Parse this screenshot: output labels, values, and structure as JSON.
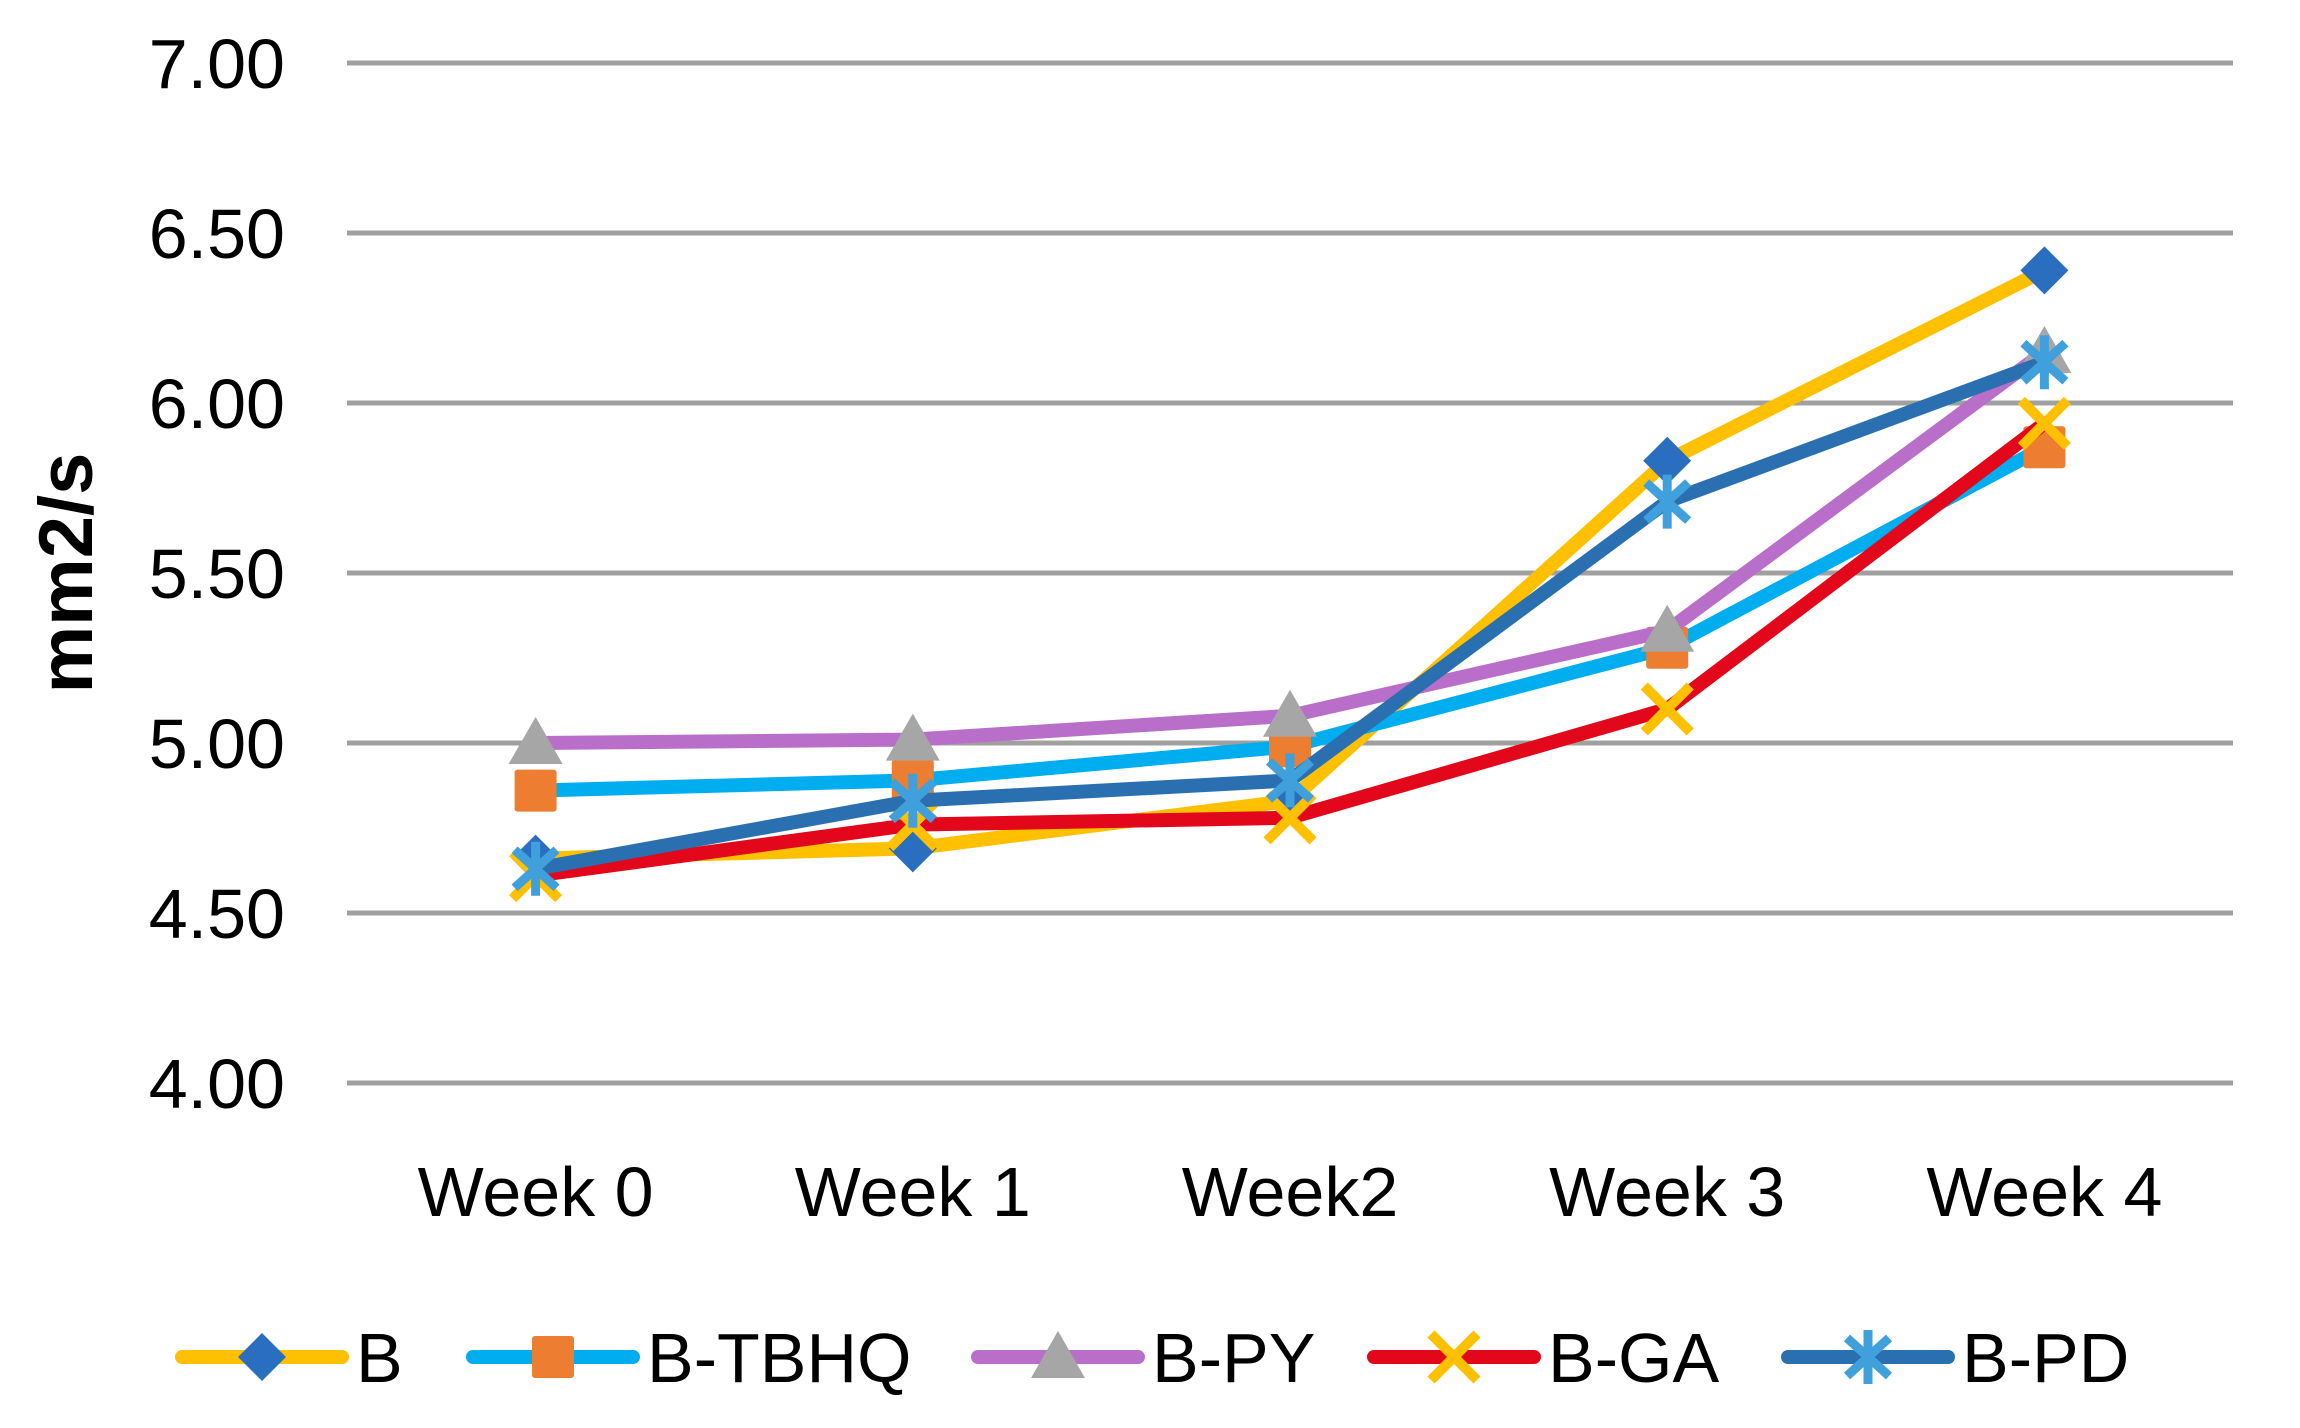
{
  "chart_data": {
    "type": "line",
    "title": "",
    "xlabel": "",
    "ylabel": "mm2/s",
    "categories": [
      "Week 0",
      "Week 1",
      "Week2",
      "Week 3",
      "Week 4"
    ],
    "y_ticks": [
      "7.00",
      "6.50",
      "6.00",
      "5.50",
      "5.00",
      "4.50",
      "4.00"
    ],
    "ylim": [
      4.0,
      7.0
    ],
    "y_tick_step": 0.5,
    "grid": true,
    "legend_position": "bottom",
    "gridline_color": "#A0A0A0",
    "text_color": "#000000",
    "background": "#FFFFFF",
    "series": [
      {
        "name": "B",
        "values": [
          4.66,
          4.69,
          4.83,
          5.83,
          6.39
        ],
        "line_color": "#FFC000",
        "marker": "diamond",
        "marker_color": "#2A6EBF"
      },
      {
        "name": "B-TBHQ",
        "values": [
          4.86,
          4.89,
          4.99,
          5.28,
          5.87
        ],
        "line_color": "#00AEEF",
        "marker": "square",
        "marker_color": "#ED7D31"
      },
      {
        "name": "B-PY",
        "values": [
          5.0,
          5.01,
          5.08,
          5.33,
          6.15
        ],
        "line_color": "#B96FC9",
        "marker": "triangle",
        "marker_color": "#A6A6A6"
      },
      {
        "name": "B-GA",
        "values": [
          4.61,
          4.76,
          4.78,
          5.1,
          5.94
        ],
        "line_color": "#E2071A",
        "marker": "x",
        "marker_color": "#FFC000"
      },
      {
        "name": "B-PD",
        "values": [
          4.63,
          4.83,
          4.89,
          5.71,
          6.12
        ],
        "line_color": "#2A70B0",
        "marker": "asterisk",
        "marker_color": "#3FA0DC"
      }
    ]
  }
}
